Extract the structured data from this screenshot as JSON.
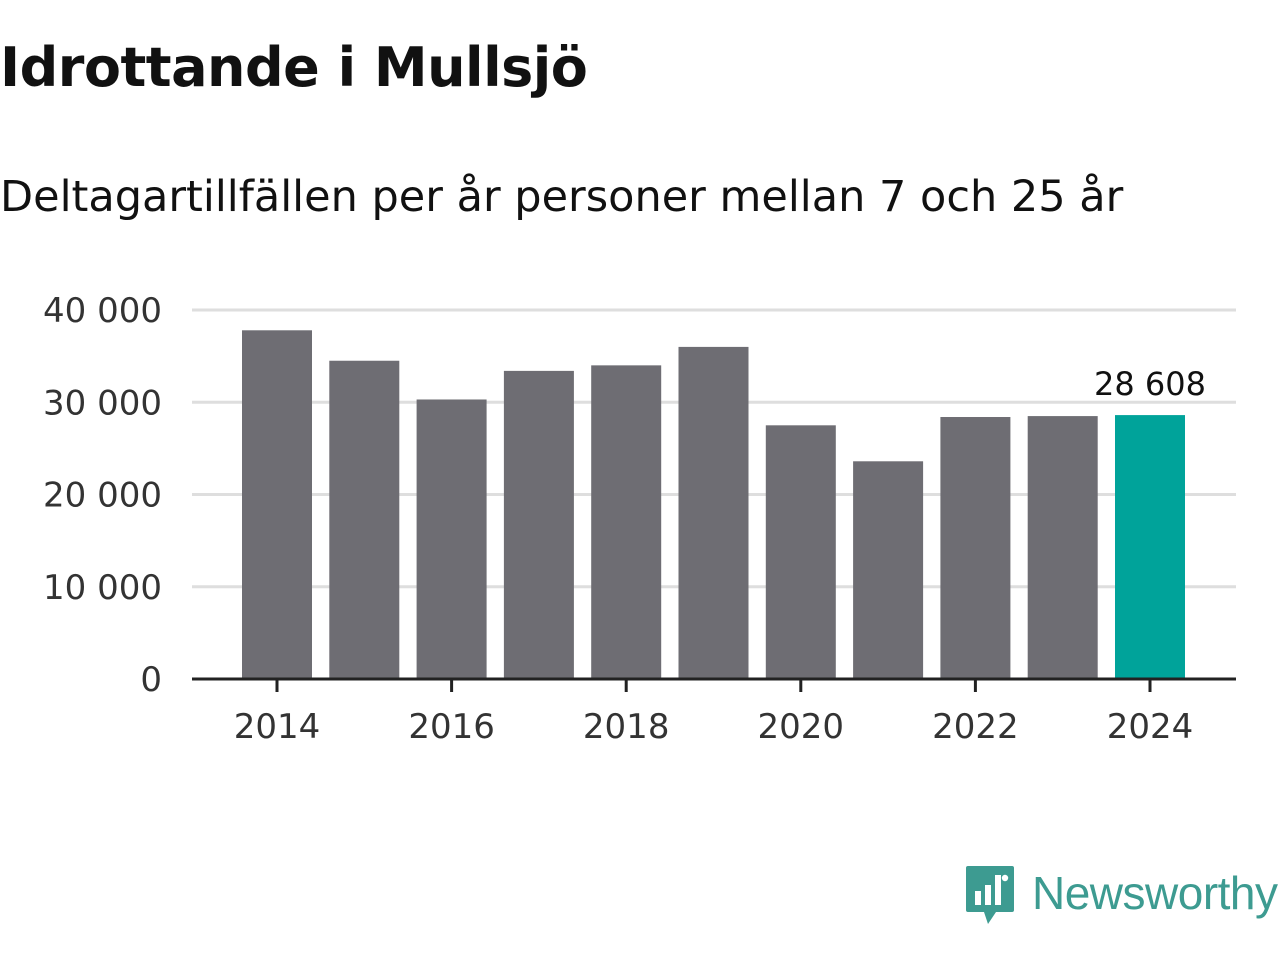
{
  "title": "Idrottande i Mullsjö",
  "subtitle": "Deltagartillfällen per år personer mellan 7 och 25 år",
  "brand": "Newsworthy",
  "brand_icon": "newsworthy-logo-icon",
  "colors": {
    "bar": "#6e6d73",
    "highlight": "#00a39a",
    "grid": "#dedede",
    "axis": "#222222",
    "brand": "#3d9b91"
  },
  "chart_data": {
    "type": "bar",
    "title": "Idrottande i Mullsjö",
    "subtitle": "Deltagartillfällen per år personer mellan 7 och 25 år",
    "xlabel": "",
    "ylabel": "",
    "categories": [
      "2014",
      "2015",
      "2016",
      "2017",
      "2018",
      "2019",
      "2020",
      "2021",
      "2022",
      "2023",
      "2024"
    ],
    "values": [
      37800,
      34500,
      30300,
      33400,
      34000,
      36000,
      27500,
      23600,
      28400,
      28500,
      28608
    ],
    "ylim": [
      0,
      40000
    ],
    "yticks": [
      0,
      10000,
      20000,
      30000,
      40000
    ],
    "ytick_labels": [
      "0",
      "10 000",
      "20 000",
      "30 000",
      "40 000"
    ],
    "xtick_labels": [
      "2014",
      "2016",
      "2018",
      "2020",
      "2022",
      "2024"
    ],
    "highlight_category": "2024",
    "highlight_label": "28 608",
    "grid": true,
    "legend": "none"
  }
}
